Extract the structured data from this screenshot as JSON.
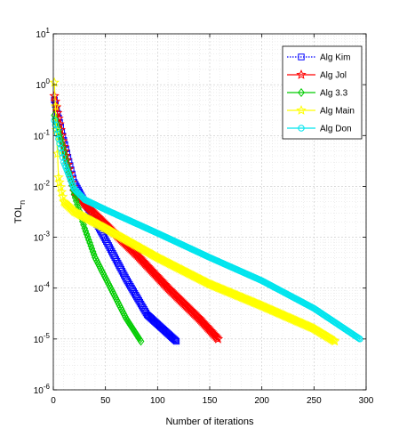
{
  "chart_data": {
    "type": "line",
    "title": "",
    "xlabel": "Number of iterations",
    "ylabel_main": "TOL",
    "ylabel_sub": "n",
    "xlim": [
      0,
      300
    ],
    "ylim": [
      1e-06,
      10
    ],
    "yscale": "log",
    "grid": true,
    "legend_position": "top-right",
    "x_ticks": [
      "0",
      "50",
      "100",
      "150",
      "200",
      "250",
      "300"
    ],
    "y_tick_exponents": [
      "1",
      "0",
      "-1",
      "-2",
      "-3",
      "-4",
      "-5",
      "-6"
    ],
    "series": [
      {
        "name": "Alg Kim",
        "color": "#0000ff",
        "marker": "square",
        "line": "dotted",
        "points": [
          [
            1,
            0.5
          ],
          [
            10,
            0.08
          ],
          [
            20,
            0.012
          ],
          [
            30,
            0.005
          ],
          [
            50,
            0.0009
          ],
          [
            70,
            0.00015
          ],
          [
            90,
            3e-05
          ],
          [
            118,
            9e-06
          ]
        ]
      },
      {
        "name": "Alg Jol",
        "color": "#ff0000",
        "marker": "star",
        "line": "solid",
        "points": [
          [
            1,
            0.6
          ],
          [
            10,
            0.06
          ],
          [
            20,
            0.008
          ],
          [
            30,
            0.0045
          ],
          [
            50,
            0.0018
          ],
          [
            80,
            0.00045
          ],
          [
            110,
            0.0001
          ],
          [
            140,
            2.5e-05
          ],
          [
            158,
            1e-05
          ]
        ]
      },
      {
        "name": "Alg 3.3",
        "color": "#00cc00",
        "marker": "diamond",
        "line": "solid",
        "points": [
          [
            1,
            0.25
          ],
          [
            10,
            0.05
          ],
          [
            20,
            0.007
          ],
          [
            30,
            0.0015
          ],
          [
            40,
            0.0004
          ],
          [
            55,
            0.0001
          ],
          [
            70,
            2.5e-05
          ],
          [
            84,
            9e-06
          ]
        ]
      },
      {
        "name": "Alg Main",
        "color": "#ffff00",
        "marker": "star",
        "line": "solid",
        "points": [
          [
            1,
            1.1
          ],
          [
            5,
            0.015
          ],
          [
            10,
            0.005
          ],
          [
            20,
            0.0032
          ],
          [
            50,
            0.0015
          ],
          [
            100,
            0.0004
          ],
          [
            150,
            0.00012
          ],
          [
            200,
            4.5e-05
          ],
          [
            250,
            1.6e-05
          ],
          [
            270,
            9e-06
          ]
        ]
      },
      {
        "name": "Alg Don",
        "color": "#00e5ee",
        "marker": "circle",
        "line": "solid",
        "points": [
          [
            1,
            0.2
          ],
          [
            10,
            0.03
          ],
          [
            20,
            0.009
          ],
          [
            30,
            0.0055
          ],
          [
            50,
            0.0035
          ],
          [
            100,
            0.0012
          ],
          [
            150,
            0.0004
          ],
          [
            200,
            0.00014
          ],
          [
            250,
            4e-05
          ],
          [
            294,
            1e-05
          ]
        ]
      }
    ]
  }
}
